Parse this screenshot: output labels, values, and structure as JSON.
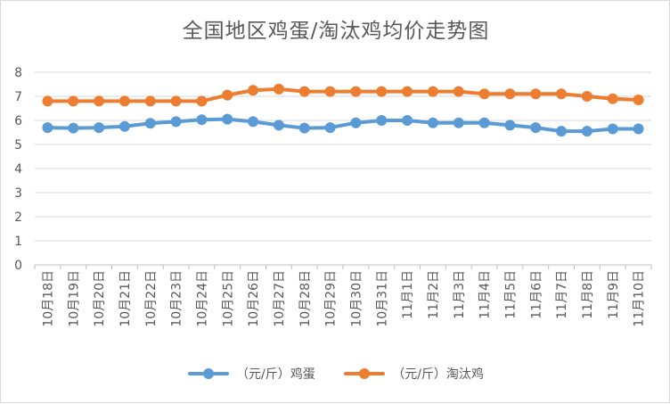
{
  "chart_data": {
    "type": "line",
    "title": "全国地区鸡蛋/淘汰鸡均价走势图",
    "xlabel": "",
    "ylabel": "",
    "ylim": [
      0,
      8
    ],
    "yticks": [
      0,
      1,
      2,
      3,
      4,
      5,
      6,
      7,
      8
    ],
    "grid": true,
    "legend_position": "bottom",
    "categories": [
      "10月18日",
      "10月19日",
      "10月20日",
      "10月21日",
      "10月22日",
      "10月23日",
      "10月24日",
      "10月25日",
      "10月26日",
      "10月27日",
      "10月28日",
      "10月29日",
      "10月30日",
      "10月31日",
      "11月1日",
      "11月2日",
      "11月3日",
      "11月4日",
      "11月5日",
      "11月6日",
      "11月7日",
      "11月8日",
      "11月9日",
      "11月10日"
    ],
    "series": [
      {
        "name": "（元/斤）鸡蛋",
        "color": "#5b9bd5",
        "values": [
          5.7,
          5.68,
          5.7,
          5.75,
          5.88,
          5.95,
          6.03,
          6.05,
          5.95,
          5.8,
          5.68,
          5.7,
          5.9,
          6.0,
          6.0,
          5.9,
          5.9,
          5.9,
          5.8,
          5.7,
          5.55,
          5.55,
          5.65,
          5.65
        ]
      },
      {
        "name": "（元/斤）淘汰鸡",
        "color": "#ed7d31",
        "values": [
          6.8,
          6.8,
          6.8,
          6.8,
          6.8,
          6.8,
          6.8,
          7.05,
          7.25,
          7.3,
          7.2,
          7.2,
          7.2,
          7.2,
          7.2,
          7.2,
          7.2,
          7.1,
          7.1,
          7.1,
          7.1,
          7.0,
          6.9,
          6.85
        ]
      }
    ]
  }
}
